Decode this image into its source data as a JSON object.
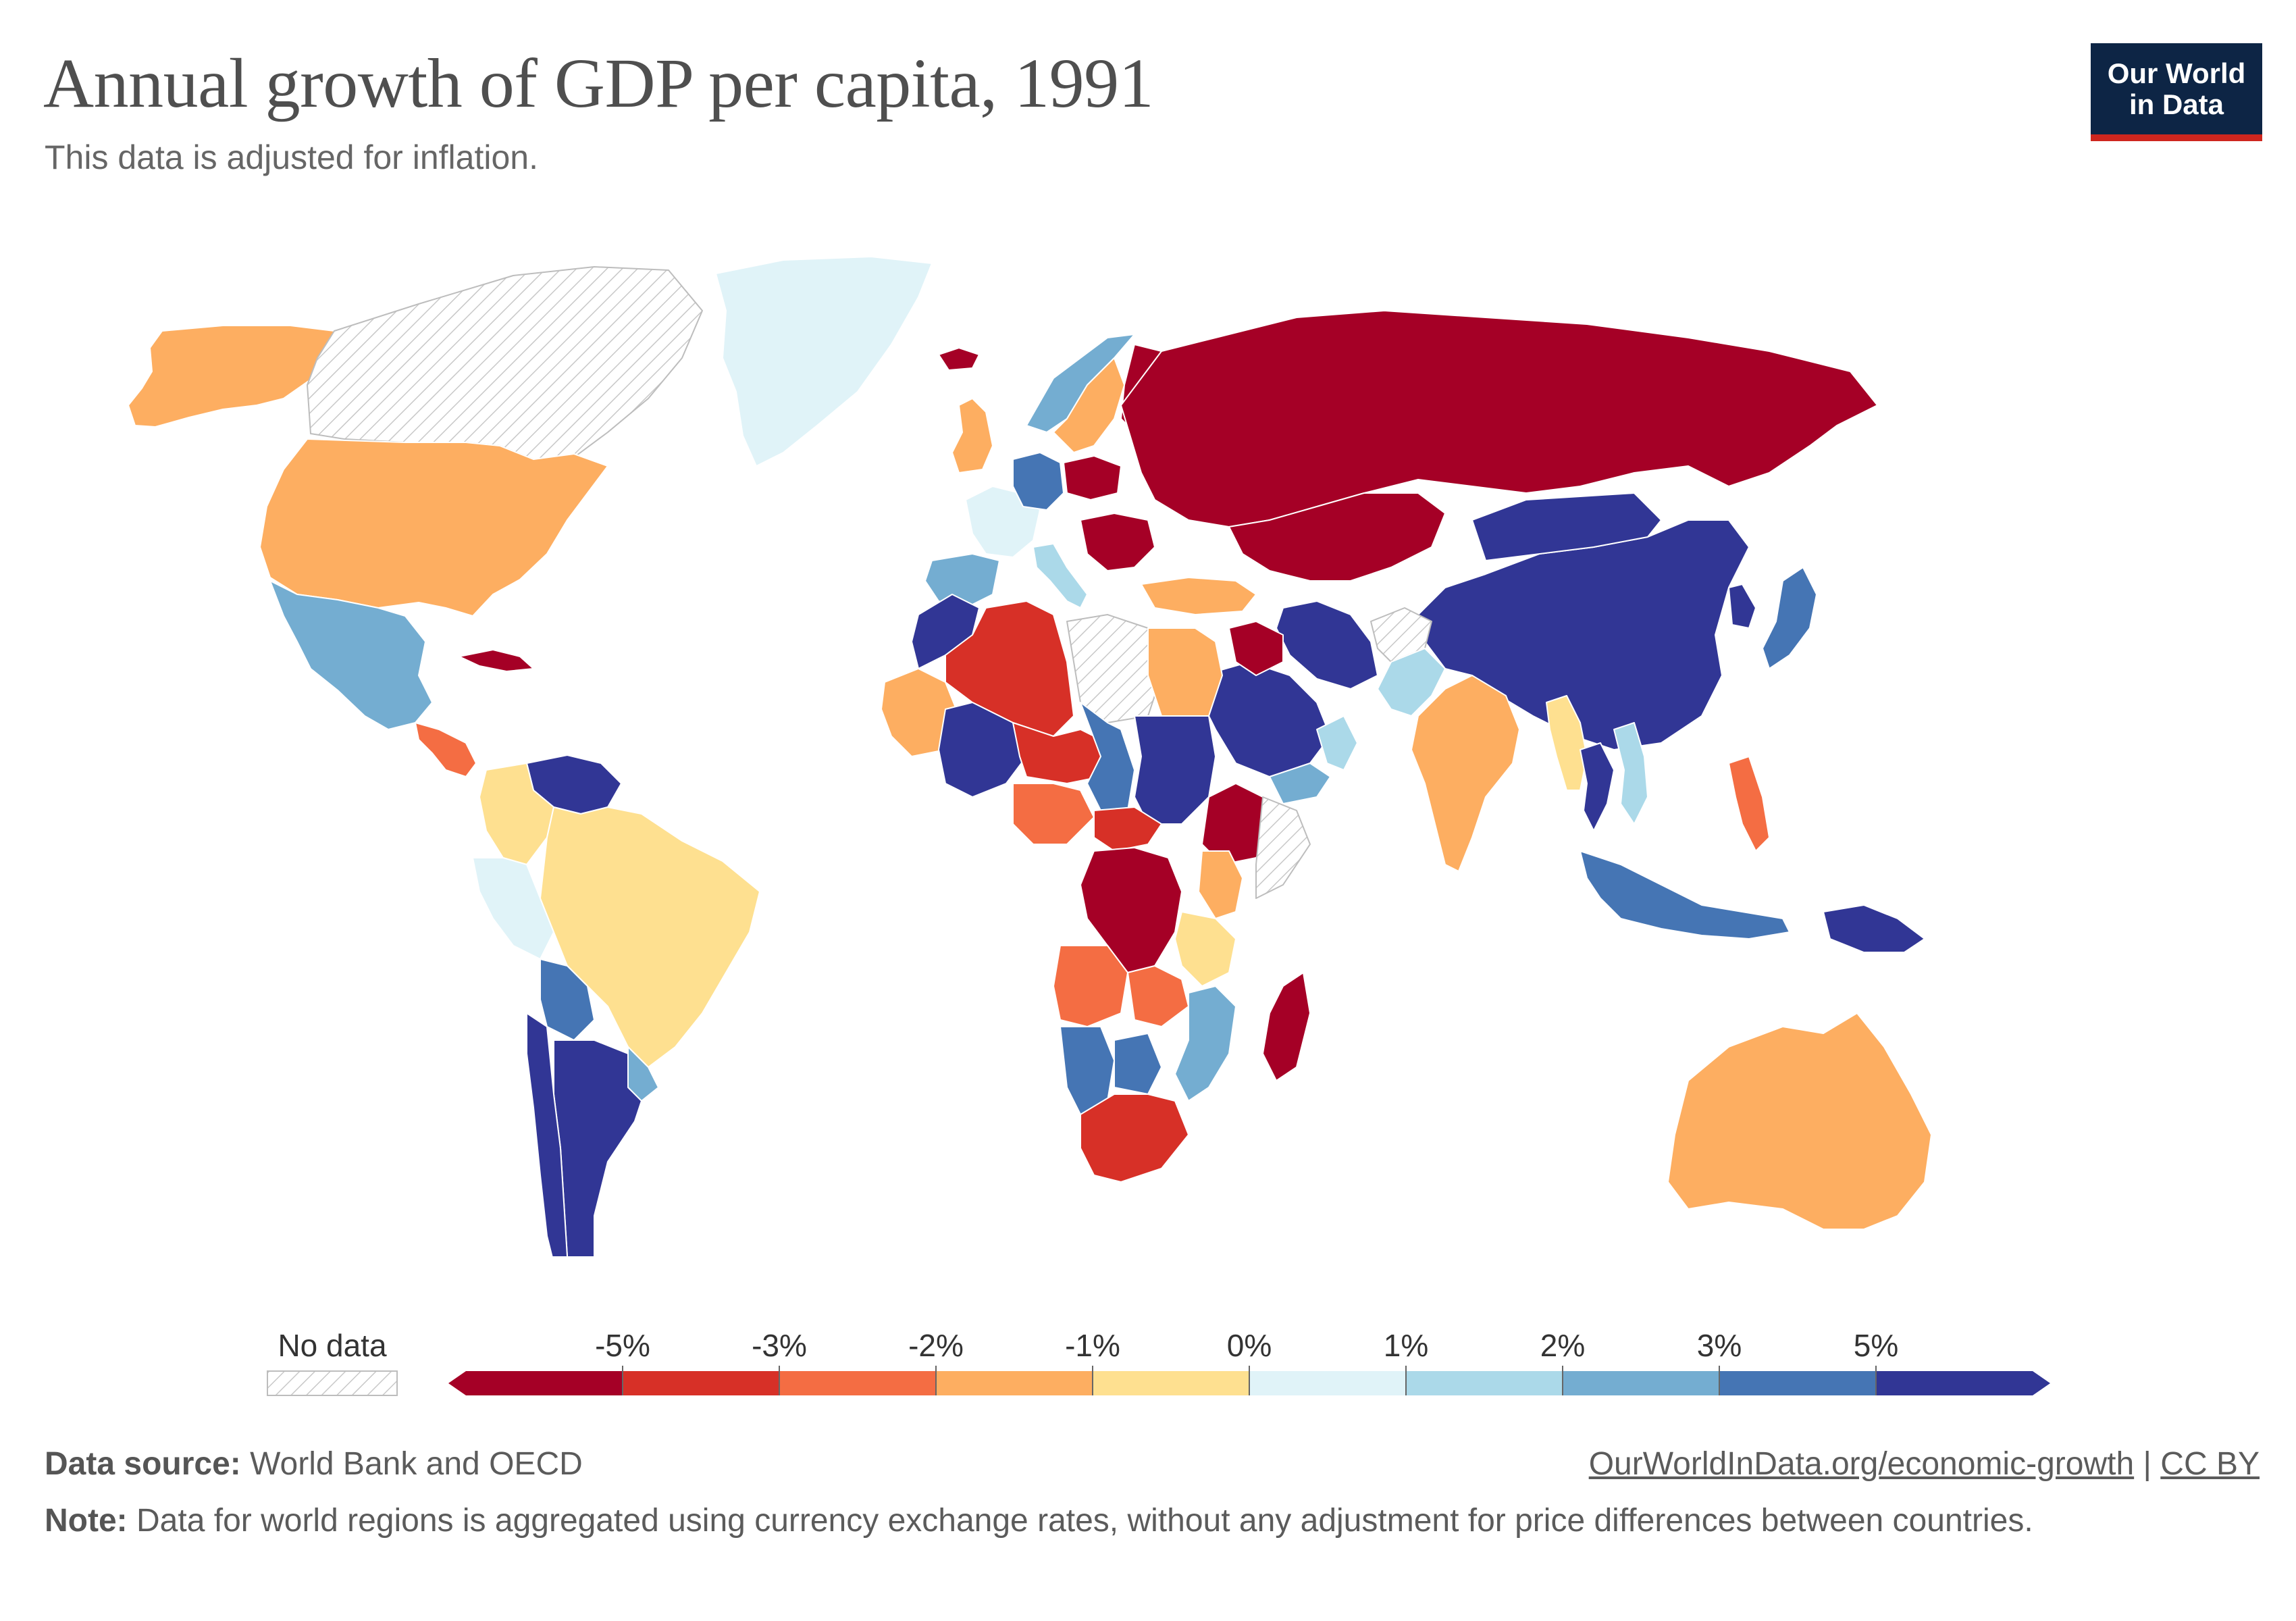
{
  "header": {
    "title": "Annual growth of GDP per capita, 1991",
    "subtitle": "This data is adjusted for inflation.",
    "logo_line1": "Our World",
    "logo_line2": "in Data"
  },
  "legend": {
    "no_data_label": "No data",
    "ticks": [
      "-5%",
      "-3%",
      "-2%",
      "-1%",
      "0%",
      "1%",
      "2%",
      "3%",
      "5%"
    ],
    "colors": [
      "#a50026",
      "#d73027",
      "#f46d43",
      "#fdae61",
      "#fee090",
      "#e0f3f8",
      "#abd9e9",
      "#74add1",
      "#4575b4",
      "#313695"
    ]
  },
  "footer": {
    "source_label": "Data source:",
    "source_value": "World Bank and OECD",
    "url_label": "OurWorldInData.org/economic-growth",
    "separator": "|",
    "license_label": "CC BY",
    "note_label": "Note:",
    "note_value": "Data for world regions is aggregated using currency exchange rates, without any adjustment for price differences between countries."
  },
  "colors": {
    "no_data_stroke": "#bdbdbd",
    "logo_bg": "#0d2545",
    "logo_accent": "#ce261e"
  },
  "map": {
    "countries": [
      {
        "name": "Alaska",
        "bin": 3
      },
      {
        "name": "Canada",
        "bin": -1
      },
      {
        "name": "United States",
        "bin": 3
      },
      {
        "name": "Mexico",
        "bin": 7
      },
      {
        "name": "Greenland",
        "bin": 5
      },
      {
        "name": "Cuba",
        "bin": 0
      },
      {
        "name": "Central America",
        "bin": 2
      },
      {
        "name": "Venezuela",
        "bin": 9
      },
      {
        "name": "Colombia",
        "bin": 4
      },
      {
        "name": "Peru",
        "bin": 5
      },
      {
        "name": "Brazil",
        "bin": 4
      },
      {
        "name": "Bolivia",
        "bin": 8
      },
      {
        "name": "Argentina",
        "bin": 9
      },
      {
        "name": "Chile",
        "bin": 9
      },
      {
        "name": "Uruguay",
        "bin": 7
      },
      {
        "name": "Iceland",
        "bin": 0
      },
      {
        "name": "Norway",
        "bin": 7
      },
      {
        "name": "Sweden",
        "bin": 3
      },
      {
        "name": "Finland",
        "bin": 0
      },
      {
        "name": "United Kingdom",
        "bin": 3
      },
      {
        "name": "France",
        "bin": 5
      },
      {
        "name": "Germany",
        "bin": 8
      },
      {
        "name": "Spain",
        "bin": 7
      },
      {
        "name": "Italy",
        "bin": 6
      },
      {
        "name": "Poland",
        "bin": 0
      },
      {
        "name": "Balkans",
        "bin": 0
      },
      {
        "name": "Russia",
        "bin": 0
      },
      {
        "name": "Kazakhstan",
        "bin": 0
      },
      {
        "name": "Turkey",
        "bin": 3
      },
      {
        "name": "China",
        "bin": 9
      },
      {
        "name": "Mongolia",
        "bin": 9
      },
      {
        "name": "Japan",
        "bin": 8
      },
      {
        "name": "Korea",
        "bin": 9
      },
      {
        "name": "Iran",
        "bin": 9
      },
      {
        "name": "Afghanistan",
        "bin": -1
      },
      {
        "name": "Saudi Arabia",
        "bin": 9
      },
      {
        "name": "Iraq",
        "bin": 0
      },
      {
        "name": "Pakistan",
        "bin": 6
      },
      {
        "name": "India",
        "bin": 3
      },
      {
        "name": "Myanmar",
        "bin": 4
      },
      {
        "name": "Thailand",
        "bin": 9
      },
      {
        "name": "Vietnam",
        "bin": 6
      },
      {
        "name": "Philippines",
        "bin": 2
      },
      {
        "name": "Indonesia",
        "bin": 8
      },
      {
        "name": "Papua New Guinea",
        "bin": 9
      },
      {
        "name": "Australia",
        "bin": 3
      },
      {
        "name": "New Zealand",
        "bin": 0
      },
      {
        "name": "Morocco",
        "bin": 9
      },
      {
        "name": "Algeria",
        "bin": 1
      },
      {
        "name": "Libya",
        "bin": -1
      },
      {
        "name": "Egypt",
        "bin": 3
      },
      {
        "name": "Mauritania",
        "bin": 3
      },
      {
        "name": "Mali",
        "bin": 9
      },
      {
        "name": "Niger",
        "bin": 1
      },
      {
        "name": "Chad",
        "bin": 8
      },
      {
        "name": "Sudan",
        "bin": 9
      },
      {
        "name": "Ethiopia",
        "bin": 0
      },
      {
        "name": "Nigeria",
        "bin": 2
      },
      {
        "name": "Central African Republic",
        "bin": 1
      },
      {
        "name": "DR Congo",
        "bin": 0
      },
      {
        "name": "Kenya",
        "bin": 3
      },
      {
        "name": "Tanzania",
        "bin": 4
      },
      {
        "name": "Angola",
        "bin": 2
      },
      {
        "name": "Zambia",
        "bin": 2
      },
      {
        "name": "Mozambique",
        "bin": 7
      },
      {
        "name": "Namibia",
        "bin": 8
      },
      {
        "name": "Botswana",
        "bin": 8
      },
      {
        "name": "South Africa",
        "bin": 1
      },
      {
        "name": "Madagascar",
        "bin": 0
      },
      {
        "name": "Yemen",
        "bin": 7
      },
      {
        "name": "Oman",
        "bin": 6
      },
      {
        "name": "Somalia",
        "bin": -1
      }
    ]
  }
}
